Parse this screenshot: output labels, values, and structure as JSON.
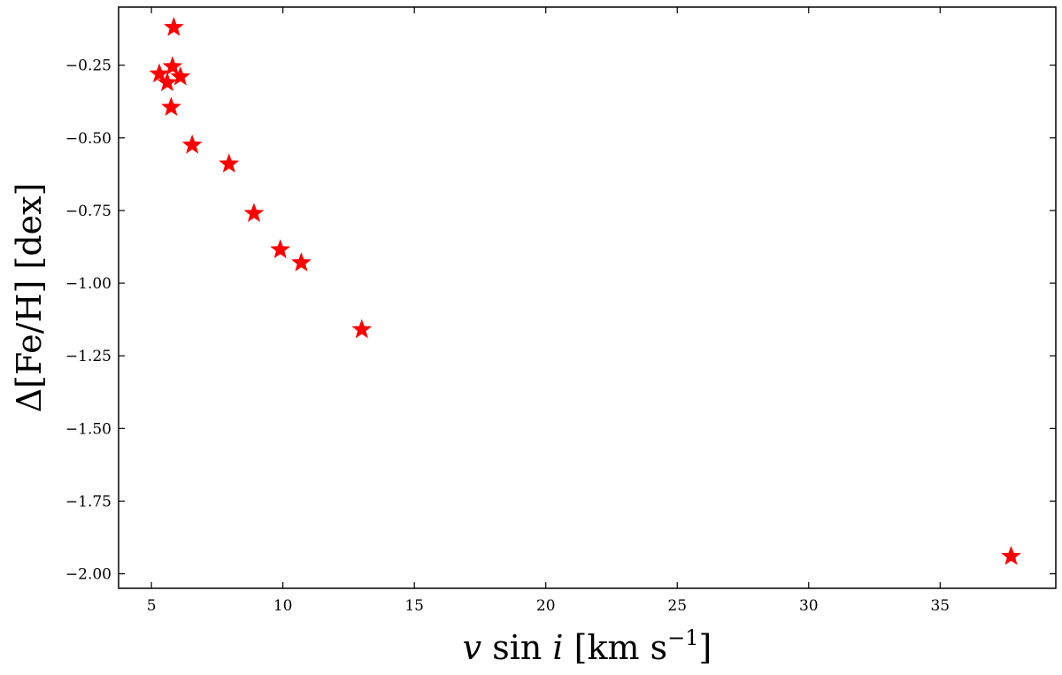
{
  "chart_data": {
    "type": "scatter",
    "title": "",
    "xlabel": {
      "math": "v sin i",
      "units": "[km s",
      "exp": "−1",
      "close": "]"
    },
    "ylabel": "Δ[Fe/H] [dex]",
    "xlim": [
      3.75,
      39.4
    ],
    "ylim": [
      -2.05,
      -0.05
    ],
    "xticks": [
      5,
      10,
      15,
      20,
      25,
      30,
      35
    ],
    "xtick_labels": [
      "5",
      "10",
      "15",
      "20",
      "25",
      "30",
      "35"
    ],
    "yticks": [
      -0.25,
      -0.5,
      -0.75,
      -1.0,
      -1.25,
      -1.5,
      -1.75,
      -2.0
    ],
    "ytick_labels": [
      "−0.25",
      "−0.50",
      "−0.75",
      "−1.00",
      "−1.25",
      "−1.50",
      "−1.75",
      "−2.00"
    ],
    "grid": false,
    "marker": "star",
    "color": "#ff0000",
    "series": [
      {
        "points": [
          {
            "x": 5.85,
            "y": -0.12
          },
          {
            "x": 5.8,
            "y": -0.255
          },
          {
            "x": 5.3,
            "y": -0.28
          },
          {
            "x": 6.1,
            "y": -0.29
          },
          {
            "x": 5.6,
            "y": -0.31
          },
          {
            "x": 5.75,
            "y": -0.395
          },
          {
            "x": 6.55,
            "y": -0.525
          },
          {
            "x": 7.95,
            "y": -0.59
          },
          {
            "x": 8.9,
            "y": -0.76
          },
          {
            "x": 9.9,
            "y": -0.885
          },
          {
            "x": 10.7,
            "y": -0.93
          },
          {
            "x": 13.0,
            "y": -1.16
          },
          {
            "x": 37.7,
            "y": -1.94
          }
        ]
      }
    ]
  }
}
